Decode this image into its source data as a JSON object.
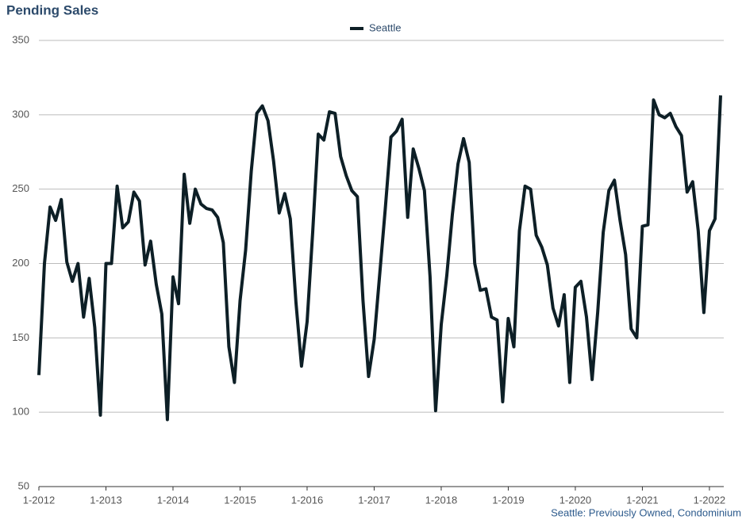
{
  "chart_data": {
    "type": "line",
    "title": "Pending Sales",
    "footnote": "Seattle: Previously Owned, Condominium",
    "categories": [
      "1-2012",
      null,
      null,
      null,
      null,
      null,
      null,
      null,
      null,
      null,
      null,
      null,
      "1-2013",
      null,
      null,
      null,
      null,
      null,
      null,
      null,
      null,
      null,
      null,
      null,
      "1-2014",
      null,
      null,
      null,
      null,
      null,
      null,
      null,
      null,
      null,
      null,
      null,
      "1-2015",
      null,
      null,
      null,
      null,
      null,
      null,
      null,
      null,
      null,
      null,
      null,
      "1-2016",
      null,
      null,
      null,
      null,
      null,
      null,
      null,
      null,
      null,
      null,
      null,
      "1-2017",
      null,
      null,
      null,
      null,
      null,
      null,
      null,
      null,
      null,
      null,
      null,
      "1-2018",
      null,
      null,
      null,
      null,
      null,
      null,
      null,
      null,
      null,
      null,
      null,
      "1-2019",
      null,
      null,
      null,
      null,
      null,
      null,
      null,
      null,
      null,
      null,
      null,
      "1-2020",
      null,
      null,
      null,
      null,
      null,
      null,
      null,
      null,
      null,
      null,
      null,
      "1-2021",
      null,
      null,
      null,
      null,
      null,
      null,
      null,
      null,
      null,
      null,
      null,
      "1-2022",
      null,
      null
    ],
    "series": [
      {
        "name": "Seattle",
        "color": "#0d1f26",
        "values": [
          125,
          200,
          238,
          229,
          243,
          201,
          188,
          200,
          164,
          190,
          157,
          98,
          200,
          200,
          252,
          224,
          228,
          248,
          242,
          199,
          215,
          186,
          166,
          95,
          191,
          173,
          260,
          227,
          250,
          240,
          237,
          236,
          231,
          214,
          144,
          120,
          175,
          209,
          262,
          301,
          306,
          296,
          269,
          234,
          247,
          230,
          174,
          131,
          161,
          221,
          287,
          283,
          302,
          301,
          272,
          259,
          249,
          245,
          175,
          124,
          149,
          193,
          237,
          285,
          289,
          297,
          231,
          277,
          264,
          249,
          191,
          101,
          159,
          192,
          233,
          267,
          284,
          268,
          200,
          182,
          183,
          164,
          162,
          107,
          163,
          144,
          222,
          252,
          250,
          219,
          211,
          199,
          170,
          158,
          179,
          120,
          184,
          188,
          164,
          122,
          167,
          221,
          249,
          256,
          229,
          206,
          156,
          150,
          225,
          226,
          310,
          300,
          298,
          301,
          292,
          286,
          248,
          255,
          222,
          167,
          222,
          230,
          313
        ]
      }
    ],
    "ylim": [
      50,
      350
    ],
    "yticks": [
      50,
      100,
      150,
      200,
      250,
      300,
      350
    ],
    "grid": true,
    "legend": "top"
  }
}
